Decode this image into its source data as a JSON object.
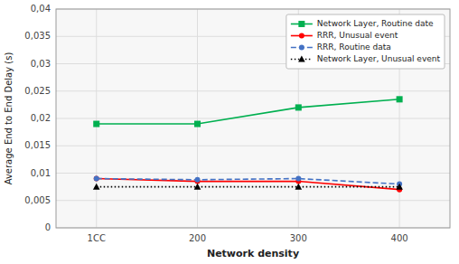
{
  "chart_data": {
    "type": "line",
    "xlabel": "Network density",
    "ylabel": "Average End to End Delay (s)",
    "x": [
      100,
      200,
      300,
      400
    ],
    "xlim": [
      60,
      450
    ],
    "xticks": [
      {
        "value": 100,
        "label": "1CC"
      },
      200,
      300,
      400
    ],
    "ylim": [
      0,
      0.04
    ],
    "yticks": [
      0,
      {
        "value": 0.005,
        "label": "0,005"
      },
      {
        "value": 0.01,
        "label": "0,01"
      },
      {
        "value": 0.015,
        "label": "0,015"
      },
      {
        "value": 0.02,
        "label": "0,02"
      },
      {
        "value": 0.025,
        "label": "0,025"
      },
      {
        "value": 0.03,
        "label": "0,03"
      },
      {
        "value": 0.035,
        "label": "0,035"
      },
      {
        "value": 0.04,
        "label": "0,04"
      }
    ],
    "grid": true,
    "legend": "upper right",
    "series": [
      {
        "name": "Network Layer, Routine date",
        "color": "#00b050",
        "marker": "square",
        "line_style": "solid",
        "values": [
          0.019,
          0.019,
          0.022,
          0.0235
        ]
      },
      {
        "name": "RRR, Unusual event",
        "color": "#ff0000",
        "marker": "circle",
        "line_style": "solid",
        "values": [
          0.009,
          0.0085,
          0.0085,
          0.007
        ]
      },
      {
        "name": "RRR, Routine data",
        "color": "#4472c4",
        "marker": "circle",
        "line_style": "dashed",
        "values": [
          0.009,
          0.0088,
          0.009,
          0.008
        ]
      },
      {
        "name": "Network Layer, Unusual event",
        "color": "#000000",
        "marker": "triangle",
        "line_style": "dotted",
        "values": [
          0.0075,
          0.0075,
          0.0075,
          0.0075
        ]
      }
    ]
  }
}
